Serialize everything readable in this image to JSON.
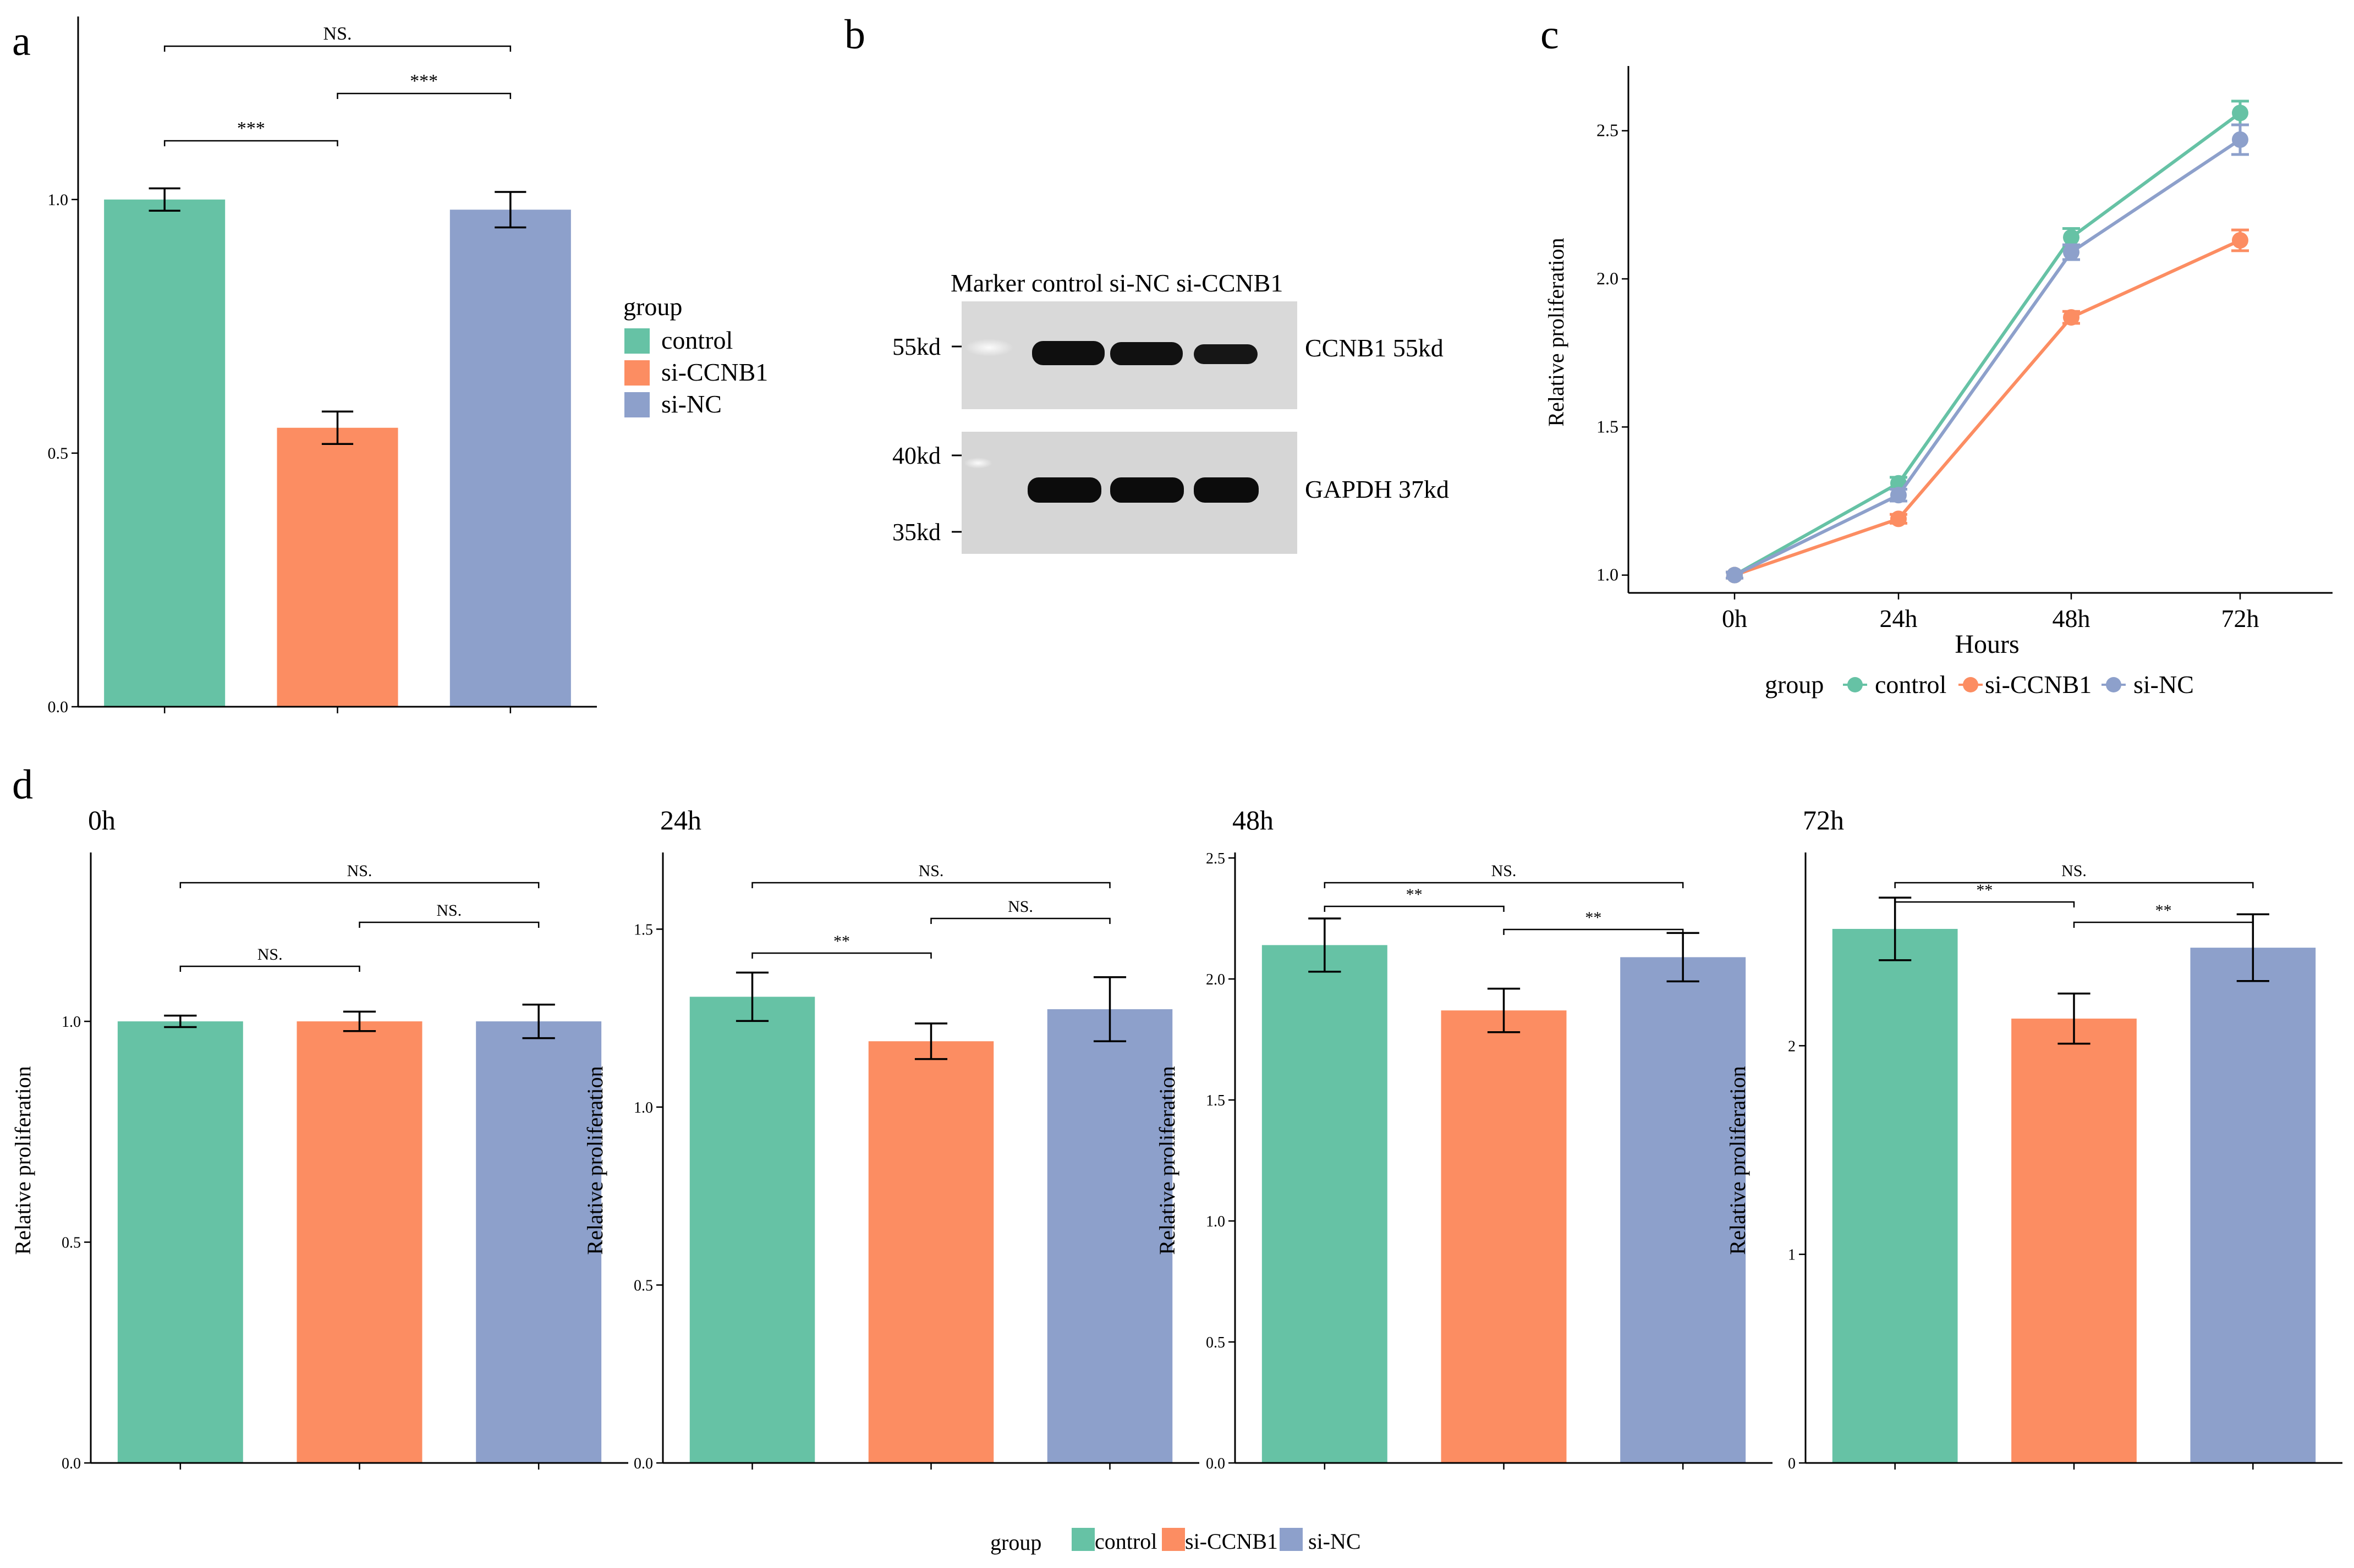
{
  "colors": {
    "control": "#66C2A5",
    "si-CCNB1": "#FC8D62",
    "si-NC": "#8DA0CB",
    "axis": "#000000"
  },
  "legend": {
    "title": "group",
    "items": [
      "control",
      "si-CCNB1",
      "si-NC"
    ]
  },
  "panels": {
    "a": "a",
    "b": "b",
    "c": "c",
    "d": "d"
  },
  "chart_data": [
    {
      "id": "a",
      "type": "bar",
      "title": "",
      "categories": [
        "control",
        "si-CCNB1",
        "si-NC"
      ],
      "values": [
        1.0,
        0.55,
        0.98
      ],
      "errors": [
        0.022,
        0.032,
        0.035
      ],
      "ylim": [
        0,
        1.35
      ],
      "yticks": [
        0.0,
        0.5,
        1.0
      ],
      "ytick_labels": [
        "0.0",
        "0.5",
        "1.0"
      ],
      "xlabel": "",
      "ylabel": "",
      "significance": [
        {
          "from": 0,
          "to": 1,
          "label": "***"
        },
        {
          "from": 1,
          "to": 2,
          "label": "***"
        },
        {
          "from": 0,
          "to": 2,
          "label": "NS."
        }
      ]
    },
    {
      "id": "c",
      "type": "line",
      "x": [
        "0h",
        "24h",
        "48h",
        "72h"
      ],
      "series": [
        {
          "name": "control",
          "values": [
            1.0,
            1.31,
            2.14,
            2.56
          ],
          "errors": [
            0.01,
            0.02,
            0.03,
            0.04
          ]
        },
        {
          "name": "si-CCNB1",
          "values": [
            1.0,
            1.19,
            1.87,
            2.13
          ],
          "errors": [
            0.01,
            0.015,
            0.02,
            0.035
          ]
        },
        {
          "name": "si-NC",
          "values": [
            1.0,
            1.27,
            2.09,
            2.47
          ],
          "errors": [
            0.01,
            0.02,
            0.025,
            0.05
          ]
        }
      ],
      "ylim": [
        0.94,
        2.7
      ],
      "yticks": [
        1.0,
        1.5,
        2.0,
        2.5
      ],
      "ytick_labels": [
        "1.0",
        "1.5",
        "2.0",
        "2.5"
      ],
      "xlabel": "Hours",
      "ylabel": "Relative proliferation"
    },
    {
      "id": "d0",
      "type": "bar",
      "title": "0h",
      "categories": [
        "control",
        "si-CCNB1",
        "si-NC"
      ],
      "values": [
        1.0,
        1.0,
        1.0
      ],
      "errors": [
        0.013,
        0.022,
        0.038
      ],
      "ylim": [
        0,
        1.37
      ],
      "yticks": [
        0.0,
        0.5,
        1.0
      ],
      "ytick_labels": [
        "0.0",
        "0.5",
        "1.0"
      ],
      "xlabel": "",
      "ylabel": "Relative proliferation",
      "significance": [
        {
          "from": 0,
          "to": 1,
          "label": "NS."
        },
        {
          "from": 1,
          "to": 2,
          "label": "NS."
        },
        {
          "from": 0,
          "to": 2,
          "label": "NS."
        }
      ]
    },
    {
      "id": "d24",
      "type": "bar",
      "title": "24h",
      "categories": [
        "control",
        "si-CCNB1",
        "si-NC"
      ],
      "values": [
        1.31,
        1.185,
        1.275
      ],
      "errors": [
        0.068,
        0.05,
        0.09
      ],
      "ylim": [
        0,
        1.7
      ],
      "yticks": [
        0.0,
        0.5,
        1.0,
        1.5
      ],
      "ytick_labels": [
        "0.0",
        "0.5",
        "1.0",
        "1.5"
      ],
      "xlabel": "",
      "ylabel": "Relative proliferation",
      "significance": [
        {
          "from": 0,
          "to": 1,
          "label": "**"
        },
        {
          "from": 1,
          "to": 2,
          "label": "NS."
        },
        {
          "from": 0,
          "to": 2,
          "label": "NS."
        }
      ]
    },
    {
      "id": "d48",
      "type": "bar",
      "title": "48h",
      "categories": [
        "control",
        "si-CCNB1",
        "si-NC"
      ],
      "values": [
        2.14,
        1.87,
        2.09
      ],
      "errors": [
        0.11,
        0.09,
        0.1
      ],
      "ylim": [
        0,
        2.5
      ],
      "yticks": [
        0.0,
        0.5,
        1.0,
        1.5,
        2.0,
        2.5
      ],
      "ytick_labels": [
        "0.0",
        "0.5",
        "1.0",
        "1.5",
        "2.0",
        "2.5"
      ],
      "xlabel": "",
      "ylabel": "Relative proliferation",
      "significance": [
        {
          "from": 0,
          "to": 1,
          "label": "**"
        },
        {
          "from": 1,
          "to": 2,
          "label": "**"
        },
        {
          "from": 0,
          "to": 2,
          "label": "NS."
        }
      ]
    },
    {
      "id": "d72",
      "type": "bar",
      "title": "72h",
      "categories": [
        "control",
        "si-CCNB1",
        "si-NC"
      ],
      "values": [
        2.56,
        2.13,
        2.47
      ],
      "errors": [
        0.15,
        0.12,
        0.16
      ],
      "ylim": [
        0,
        2.9
      ],
      "yticks": [
        0,
        1,
        2
      ],
      "ytick_labels": [
        "0",
        "1",
        "2"
      ],
      "xlabel": "",
      "ylabel": "Relative proliferation",
      "significance": [
        {
          "from": 0,
          "to": 1,
          "label": "**"
        },
        {
          "from": 1,
          "to": 2,
          "label": "**"
        },
        {
          "from": 0,
          "to": 2,
          "label": "NS."
        }
      ]
    }
  ],
  "blot": {
    "header": "Marker control si-NC si-CCNB1",
    "top_markers": [
      "55kd"
    ],
    "bottom_markers": [
      "40kd",
      "35kd"
    ],
    "top_label": "CCNB1 55kd",
    "bottom_label": "GAPDH 37kd"
  }
}
